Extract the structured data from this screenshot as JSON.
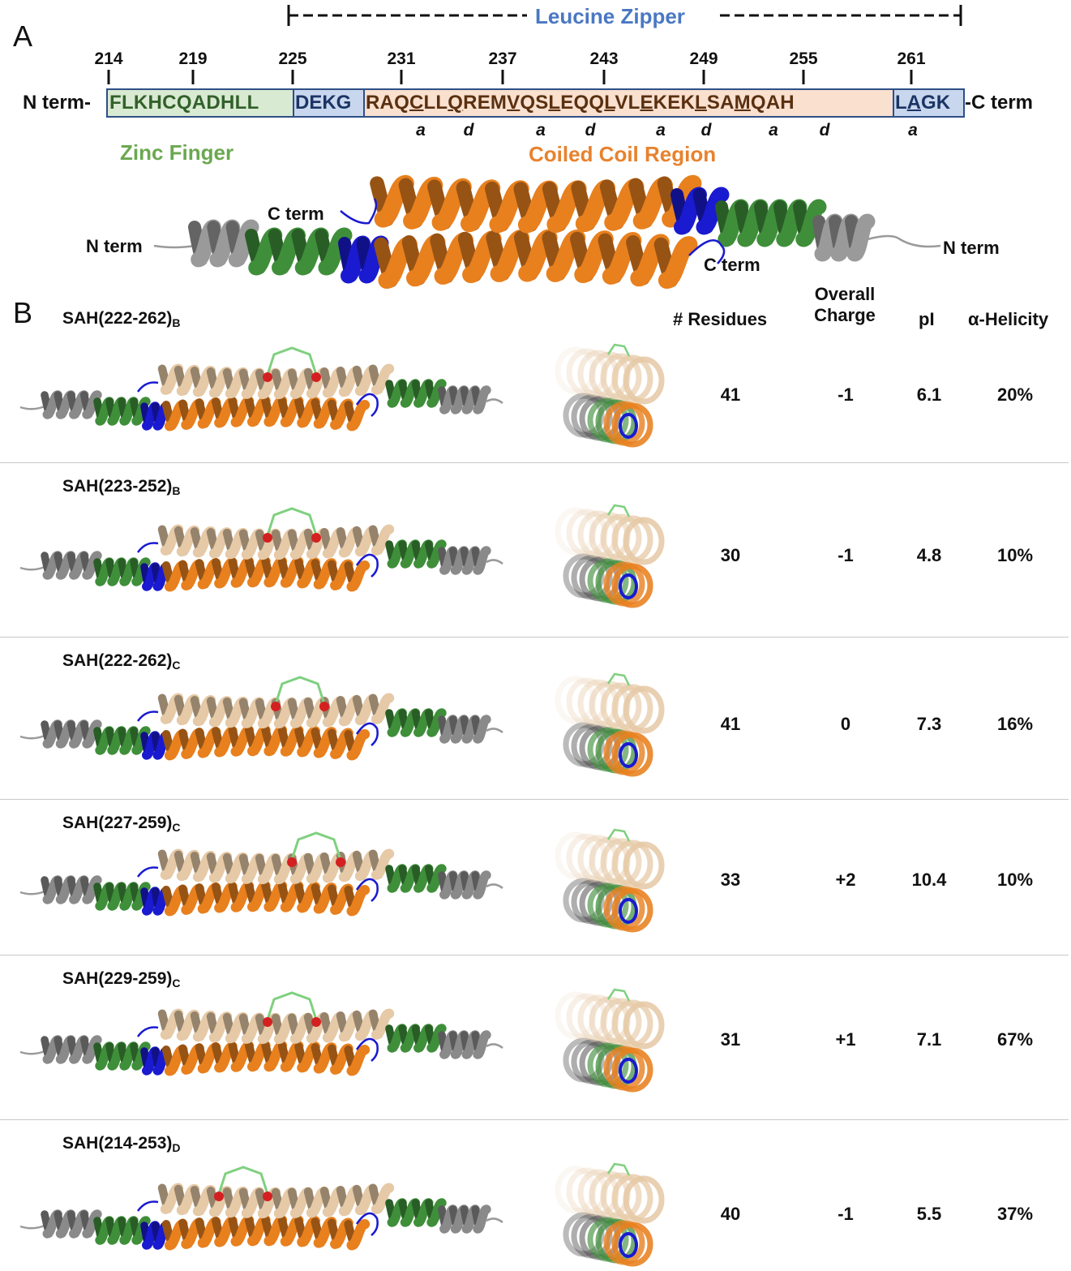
{
  "panel_a": {
    "letter": "A",
    "leucine_zipper_label": "Leucine Zipper",
    "residue_numbers": [
      "214",
      "219",
      "225",
      "231",
      "237",
      "243",
      "249",
      "255",
      "261"
    ],
    "n_term_label": "N term-",
    "c_term_label": "-C term",
    "sequence": {
      "zinc_finger_segment": "FLKHCQADHLL",
      "linker_segment": "DEKG",
      "coiled_coil_segment": "RAQCLLQREMVQSLEQQLVLEKEKLSAMQAH",
      "c_segment": "LAGK",
      "underlined_residues": [
        "C",
        "Q",
        "V",
        "L",
        "L",
        "E",
        "L",
        "M",
        "A"
      ]
    },
    "heptad_labels": [
      "a",
      "d",
      "a",
      "d",
      "a",
      "d",
      "a",
      "d",
      "a"
    ],
    "zinc_finger_label": "Zinc Finger",
    "coiled_coil_label": "Coiled Coil Region",
    "structure_labels": {
      "n_term_left": "N term",
      "c_term_top": "C term",
      "c_term_bottom": "C term",
      "n_term_right": "N term"
    },
    "colors": {
      "zinc_finger_fill": "#d9ead3",
      "zinc_finger_text": "#6aa84f",
      "linker_fill": "#c9d7ee",
      "coiled_coil_fill": "#f9e0cf",
      "coiled_coil_text": "#e8822d",
      "leucine_zipper_text": "#4a78c2"
    }
  },
  "panel_b": {
    "letter": "B",
    "headers": {
      "residues": "# Residues",
      "charge": "Overall Charge",
      "pi": "pI",
      "helicity": "α-Helicity"
    },
    "rows": [
      {
        "name": "SAH(222-262)",
        "subscript": "B",
        "residues": "41",
        "charge": "-1",
        "pi": "6.1",
        "helicity": "20%"
      },
      {
        "name": "SAH(223-252)",
        "subscript": "B",
        "residues": "30",
        "charge": "-1",
        "pi": "4.8",
        "helicity": "10%"
      },
      {
        "name": "SAH(222-262)",
        "subscript": "C",
        "residues": "41",
        "charge": "0",
        "pi": "7.3",
        "helicity": "16%"
      },
      {
        "name": "SAH(227-259)",
        "subscript": "C",
        "residues": "33",
        "charge": "+2",
        "pi": "10.4",
        "helicity": "10%"
      },
      {
        "name": "SAH(229-259)",
        "subscript": "C",
        "residues": "31",
        "charge": "+1",
        "pi": "7.1",
        "helicity": "67%"
      },
      {
        "name": "SAH(214-253)",
        "subscript": "D",
        "residues": "40",
        "charge": "-1",
        "pi": "5.5",
        "helicity": "37%"
      }
    ],
    "colors": {
      "helix_orange": "#e8801e",
      "helix_tan": "#e6c9a6",
      "helix_green": "#3f8f3a",
      "helix_gray": "#8a8a8a",
      "helix_blue": "#1a1ad0",
      "staple_red": "#d42020",
      "staple_green": "#7fd07f"
    }
  }
}
